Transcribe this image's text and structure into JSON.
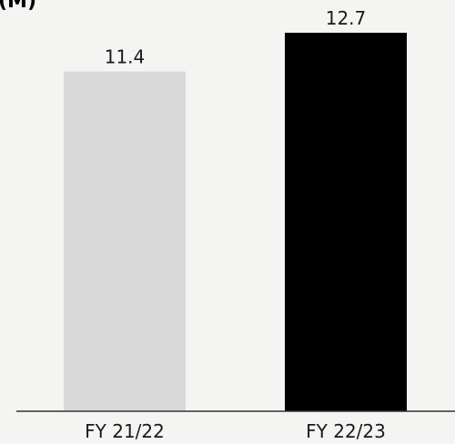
{
  "chart_data": {
    "type": "bar",
    "ylabel": "(M)",
    "categories": [
      "FY 21/22",
      "FY 22/23"
    ],
    "values": [
      11.4,
      12.7
    ],
    "value_labels": [
      "11.4",
      "12.7"
    ],
    "colors": [
      "#d9d9d9",
      "#000000"
    ],
    "ylim": [
      0,
      12.7
    ],
    "grid": false,
    "legend": "none"
  }
}
